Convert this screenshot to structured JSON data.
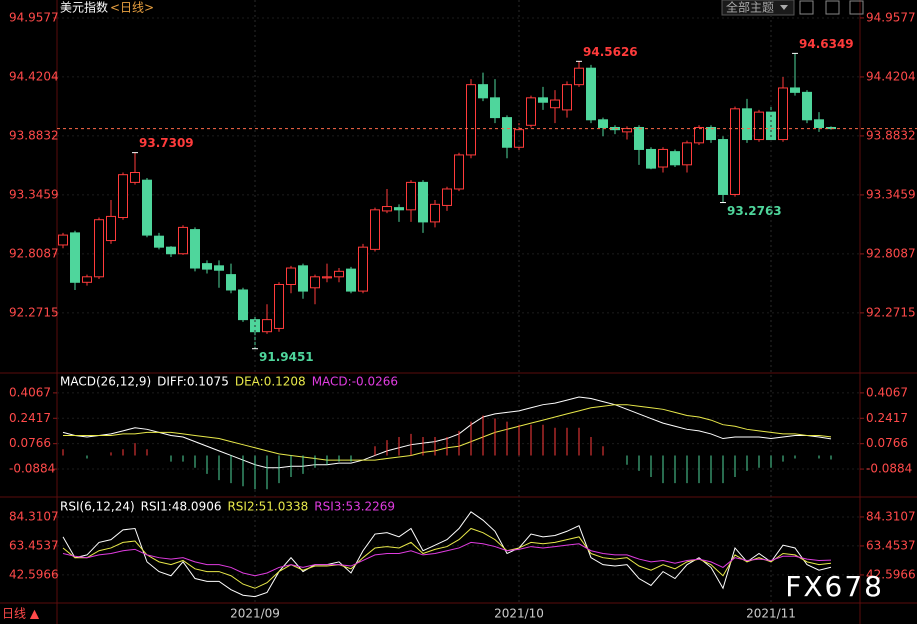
{
  "header": {
    "title": "美元指数",
    "period": "<日线>",
    "theme_button": "全部主题",
    "period_button": "日线 ▲",
    "watermark": "FX678"
  },
  "chart_data": [
    {
      "type": "candlestick",
      "categories": [
        null,
        null,
        null,
        null,
        null,
        null,
        null,
        null,
        null,
        null,
        null,
        null,
        null,
        null,
        null,
        null,
        "2021/09",
        null,
        null,
        null,
        null,
        null,
        null,
        null,
        null,
        null,
        null,
        null,
        null,
        null,
        null,
        null,
        null,
        null,
        null,
        null,
        null,
        null,
        "2021/10",
        null,
        null,
        null,
        null,
        null,
        null,
        null,
        null,
        null,
        null,
        null,
        null,
        null,
        null,
        null,
        null,
        null,
        null,
        null,
        null,
        "2021/11",
        null,
        null,
        null,
        null,
        null
      ],
      "series": [
        {
          "up_color": "#ff3b3b",
          "down_color": "#4fd69c",
          "open": [
            92.89,
            93.0,
            92.55,
            92.6,
            92.93,
            93.14,
            93.46,
            93.48,
            92.97,
            92.87,
            92.81,
            93.03,
            92.72,
            92.7,
            92.62,
            92.48,
            92.21,
            92.1,
            92.13,
            92.53,
            92.7,
            92.5,
            92.59,
            92.6,
            92.67,
            92.47,
            92.85,
            93.2,
            93.23,
            93.21,
            93.46,
            93.1,
            93.25,
            93.4,
            93.71,
            94.35,
            94.23,
            94.05,
            93.78,
            93.98,
            94.23,
            94.14,
            94.12,
            94.35,
            94.5,
            94.03,
            93.96,
            93.92,
            93.96,
            93.76,
            93.6,
            93.74,
            93.62,
            93.82,
            93.96,
            93.85,
            93.35,
            94.13,
            93.85,
            94.1,
            93.85,
            94.32,
            94.28,
            94.03,
            93.96
          ],
          "high": [
            93.0,
            93.02,
            92.62,
            93.14,
            93.3,
            93.55,
            93.7309,
            93.5,
            93.0,
            92.88,
            93.07,
            93.05,
            92.75,
            92.75,
            92.72,
            92.5,
            92.25,
            92.35,
            92.55,
            92.7,
            92.72,
            92.62,
            92.72,
            92.68,
            92.69,
            92.9,
            93.23,
            93.4,
            93.26,
            93.48,
            93.48,
            93.3,
            93.42,
            93.73,
            94.4,
            94.46,
            94.4,
            94.07,
            94.0,
            94.25,
            94.33,
            94.3,
            94.38,
            94.5626,
            94.53,
            94.05,
            93.98,
            93.97,
            93.98,
            93.78,
            93.78,
            93.76,
            93.84,
            93.98,
            93.98,
            93.88,
            94.15,
            94.22,
            94.12,
            94.15,
            94.42,
            94.6349,
            94.3,
            94.1,
            93.97
          ],
          "low": [
            92.86,
            92.48,
            92.52,
            92.58,
            92.9,
            93.12,
            93.44,
            92.96,
            92.85,
            92.78,
            92.8,
            92.65,
            92.63,
            92.5,
            92.45,
            92.19,
            91.9451,
            92.08,
            92.1,
            92.45,
            92.4,
            92.35,
            92.55,
            92.55,
            92.45,
            92.45,
            92.83,
            93.18,
            93.1,
            93.1,
            93.0,
            93.05,
            93.2,
            93.38,
            93.68,
            94.2,
            94.0,
            93.68,
            93.75,
            93.96,
            94.12,
            94.0,
            94.05,
            94.33,
            94.0,
            93.88,
            93.9,
            93.85,
            93.62,
            93.58,
            93.55,
            93.6,
            93.55,
            93.8,
            93.82,
            93.2763,
            93.33,
            93.82,
            93.83,
            93.83,
            93.83,
            94.25,
            94.0,
            93.92,
            93.94
          ],
          "close": [
            92.98,
            92.55,
            92.6,
            93.12,
            93.15,
            93.53,
            93.55,
            92.98,
            92.87,
            92.81,
            93.05,
            92.68,
            92.67,
            92.66,
            92.48,
            92.21,
            92.1,
            92.21,
            92.53,
            92.68,
            92.47,
            92.6,
            92.6,
            92.65,
            92.47,
            92.87,
            93.21,
            93.24,
            93.21,
            93.46,
            93.1,
            93.26,
            93.4,
            93.71,
            94.35,
            94.23,
            94.05,
            93.78,
            93.94,
            94.23,
            94.19,
            94.21,
            94.35,
            94.5,
            94.03,
            93.96,
            93.94,
            93.95,
            93.76,
            93.59,
            93.76,
            93.62,
            93.82,
            93.96,
            93.85,
            93.35,
            94.13,
            93.85,
            94.1,
            93.85,
            94.32,
            94.28,
            94.03,
            93.96,
            93.95
          ]
        }
      ],
      "ylim": [
        91.733,
        95.03
      ],
      "yticks": [
        92.2715,
        92.8087,
        93.3459,
        93.8832,
        94.4204,
        94.9577
      ]
    },
    {
      "type": "macd",
      "title": "MACD(26,12,9)",
      "series": [
        {
          "name": "DIFF:0.1075",
          "color": "#ffffff",
          "values": [
            0.15,
            0.13,
            0.12,
            0.13,
            0.14,
            0.16,
            0.18,
            0.17,
            0.15,
            0.13,
            0.12,
            0.09,
            0.06,
            0.03,
            0.0,
            -0.03,
            -0.06,
            -0.08,
            -0.08,
            -0.07,
            -0.07,
            -0.06,
            -0.06,
            -0.05,
            -0.05,
            -0.03,
            0.0,
            0.03,
            0.05,
            0.07,
            0.08,
            0.09,
            0.11,
            0.14,
            0.2,
            0.25,
            0.27,
            0.28,
            0.29,
            0.31,
            0.33,
            0.34,
            0.36,
            0.38,
            0.37,
            0.35,
            0.33,
            0.3,
            0.27,
            0.24,
            0.21,
            0.19,
            0.17,
            0.16,
            0.14,
            0.11,
            0.12,
            0.12,
            0.12,
            0.11,
            0.12,
            0.13,
            0.13,
            0.12,
            0.1075
          ]
        },
        {
          "name": "DEA:0.1208",
          "color": "#e8e84a",
          "values": [
            0.13,
            0.13,
            0.13,
            0.13,
            0.13,
            0.14,
            0.14,
            0.15,
            0.15,
            0.15,
            0.14,
            0.13,
            0.12,
            0.11,
            0.09,
            0.07,
            0.05,
            0.03,
            0.01,
            0.0,
            -0.01,
            -0.02,
            -0.03,
            -0.03,
            -0.03,
            -0.03,
            -0.03,
            -0.02,
            -0.01,
            0.0,
            0.02,
            0.03,
            0.05,
            0.06,
            0.09,
            0.12,
            0.15,
            0.17,
            0.19,
            0.21,
            0.23,
            0.25,
            0.27,
            0.29,
            0.31,
            0.32,
            0.33,
            0.33,
            0.32,
            0.31,
            0.3,
            0.28,
            0.26,
            0.25,
            0.23,
            0.2,
            0.19,
            0.17,
            0.16,
            0.15,
            0.14,
            0.14,
            0.13,
            0.13,
            0.1208
          ]
        },
        {
          "name": "MACD:-0.0266",
          "color": "#e03ce0",
          "style": "bar",
          "up_color": "#ff3b3b",
          "down_color": "#4fd69c",
          "values": [
            0.04,
            0,
            -0.02,
            0,
            0.02,
            0.04,
            0.08,
            0.04,
            0,
            -0.04,
            -0.04,
            -0.08,
            -0.12,
            -0.16,
            -0.18,
            -0.2,
            -0.22,
            -0.22,
            -0.18,
            -0.14,
            -0.12,
            -0.08,
            -0.06,
            -0.04,
            -0.04,
            0,
            0.06,
            0.1,
            0.12,
            0.14,
            0.12,
            0.12,
            0.12,
            0.16,
            0.22,
            0.26,
            0.24,
            0.22,
            0.2,
            0.2,
            0.2,
            0.18,
            0.18,
            0.18,
            0.12,
            0.06,
            0,
            -0.06,
            -0.1,
            -0.14,
            -0.18,
            -0.18,
            -0.18,
            -0.18,
            -0.18,
            -0.18,
            -0.14,
            -0.1,
            -0.08,
            -0.08,
            -0.04,
            -0.02,
            0,
            -0.02,
            -0.0266
          ]
        }
      ],
      "ylim": [
        -0.257,
        0.523
      ],
      "yticks": [
        -0.0884,
        0.0766,
        0.2417,
        0.4067
      ]
    },
    {
      "type": "line",
      "title": "RSI(6,12,24)",
      "series": [
        {
          "name": "RSI1:48.0906",
          "color": "#ffffff",
          "values": [
            70,
            55,
            57,
            66,
            68,
            75,
            76,
            52,
            45,
            42,
            52,
            40,
            38,
            38,
            32,
            28,
            27,
            30,
            45,
            55,
            45,
            50,
            50,
            52,
            44,
            60,
            72,
            73,
            70,
            76,
            60,
            64,
            68,
            76,
            88,
            82,
            74,
            58,
            62,
            72,
            70,
            71,
            74,
            78,
            55,
            50,
            49,
            50,
            40,
            35,
            45,
            40,
            50,
            55,
            48,
            33,
            62,
            52,
            58,
            52,
            64,
            62,
            50,
            46,
            48.0906
          ]
        },
        {
          "name": "RSI2:51.0338",
          "color": "#e8e84a",
          "values": [
            62,
            55,
            55,
            60,
            62,
            66,
            67,
            57,
            52,
            50,
            53,
            47,
            45,
            45,
            42,
            36,
            33,
            37,
            45,
            50,
            46,
            49,
            49,
            50,
            47,
            55,
            62,
            63,
            62,
            66,
            58,
            61,
            63,
            68,
            76,
            73,
            68,
            60,
            62,
            66,
            65,
            66,
            68,
            70,
            58,
            55,
            54,
            55,
            49,
            46,
            50,
            47,
            52,
            54,
            50,
            42,
            57,
            52,
            55,
            52,
            58,
            57,
            52,
            50,
            51.0338
          ]
        },
        {
          "name": "RSI3:53.2269",
          "color": "#e03ce0",
          "values": [
            58,
            56,
            55,
            57,
            58,
            60,
            61,
            57,
            55,
            54,
            55,
            52,
            50,
            50,
            48,
            44,
            42,
            44,
            48,
            50,
            48,
            50,
            50,
            50,
            49,
            53,
            57,
            58,
            58,
            60,
            57,
            58,
            60,
            62,
            66,
            65,
            63,
            60,
            61,
            63,
            62,
            63,
            64,
            65,
            60,
            58,
            57,
            57,
            54,
            52,
            53,
            51,
            53,
            54,
            52,
            48,
            55,
            53,
            54,
            53,
            56,
            56,
            54,
            53,
            53.2269
          ]
        }
      ],
      "ylim": [
        26,
        96.5
      ],
      "yticks": [
        42.5966,
        63.4537,
        84.3107
      ]
    }
  ]
}
